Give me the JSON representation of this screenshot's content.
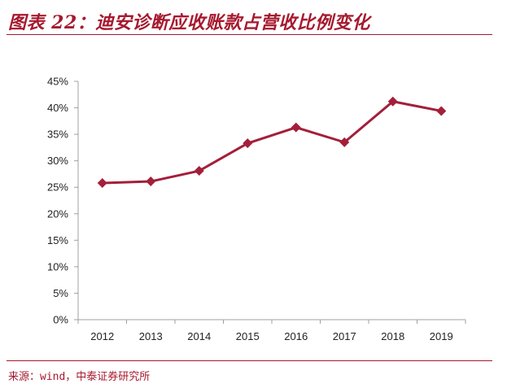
{
  "header": {
    "title": "图表 22：迪安诊断应收账款占营收比例变化"
  },
  "footer": {
    "source": "来源：wind，中泰证券研究所"
  },
  "colors": {
    "accent": "#a6192e",
    "series": "#a31f3a"
  },
  "chart_data": {
    "type": "line",
    "categories": [
      "2012",
      "2013",
      "2014",
      "2015",
      "2016",
      "2017",
      "2018",
      "2019"
    ],
    "series": [
      {
        "values": [
          25.8,
          26.1,
          28.1,
          33.3,
          36.3,
          33.5,
          41.2,
          39.4
        ]
      }
    ],
    "ylim": [
      0,
      45
    ],
    "yticks": [
      "0%",
      "5%",
      "10%",
      "15%",
      "20%",
      "25%",
      "30%",
      "35%",
      "40%",
      "45%"
    ],
    "grid": false,
    "legend": "none",
    "marker": "diamond"
  }
}
